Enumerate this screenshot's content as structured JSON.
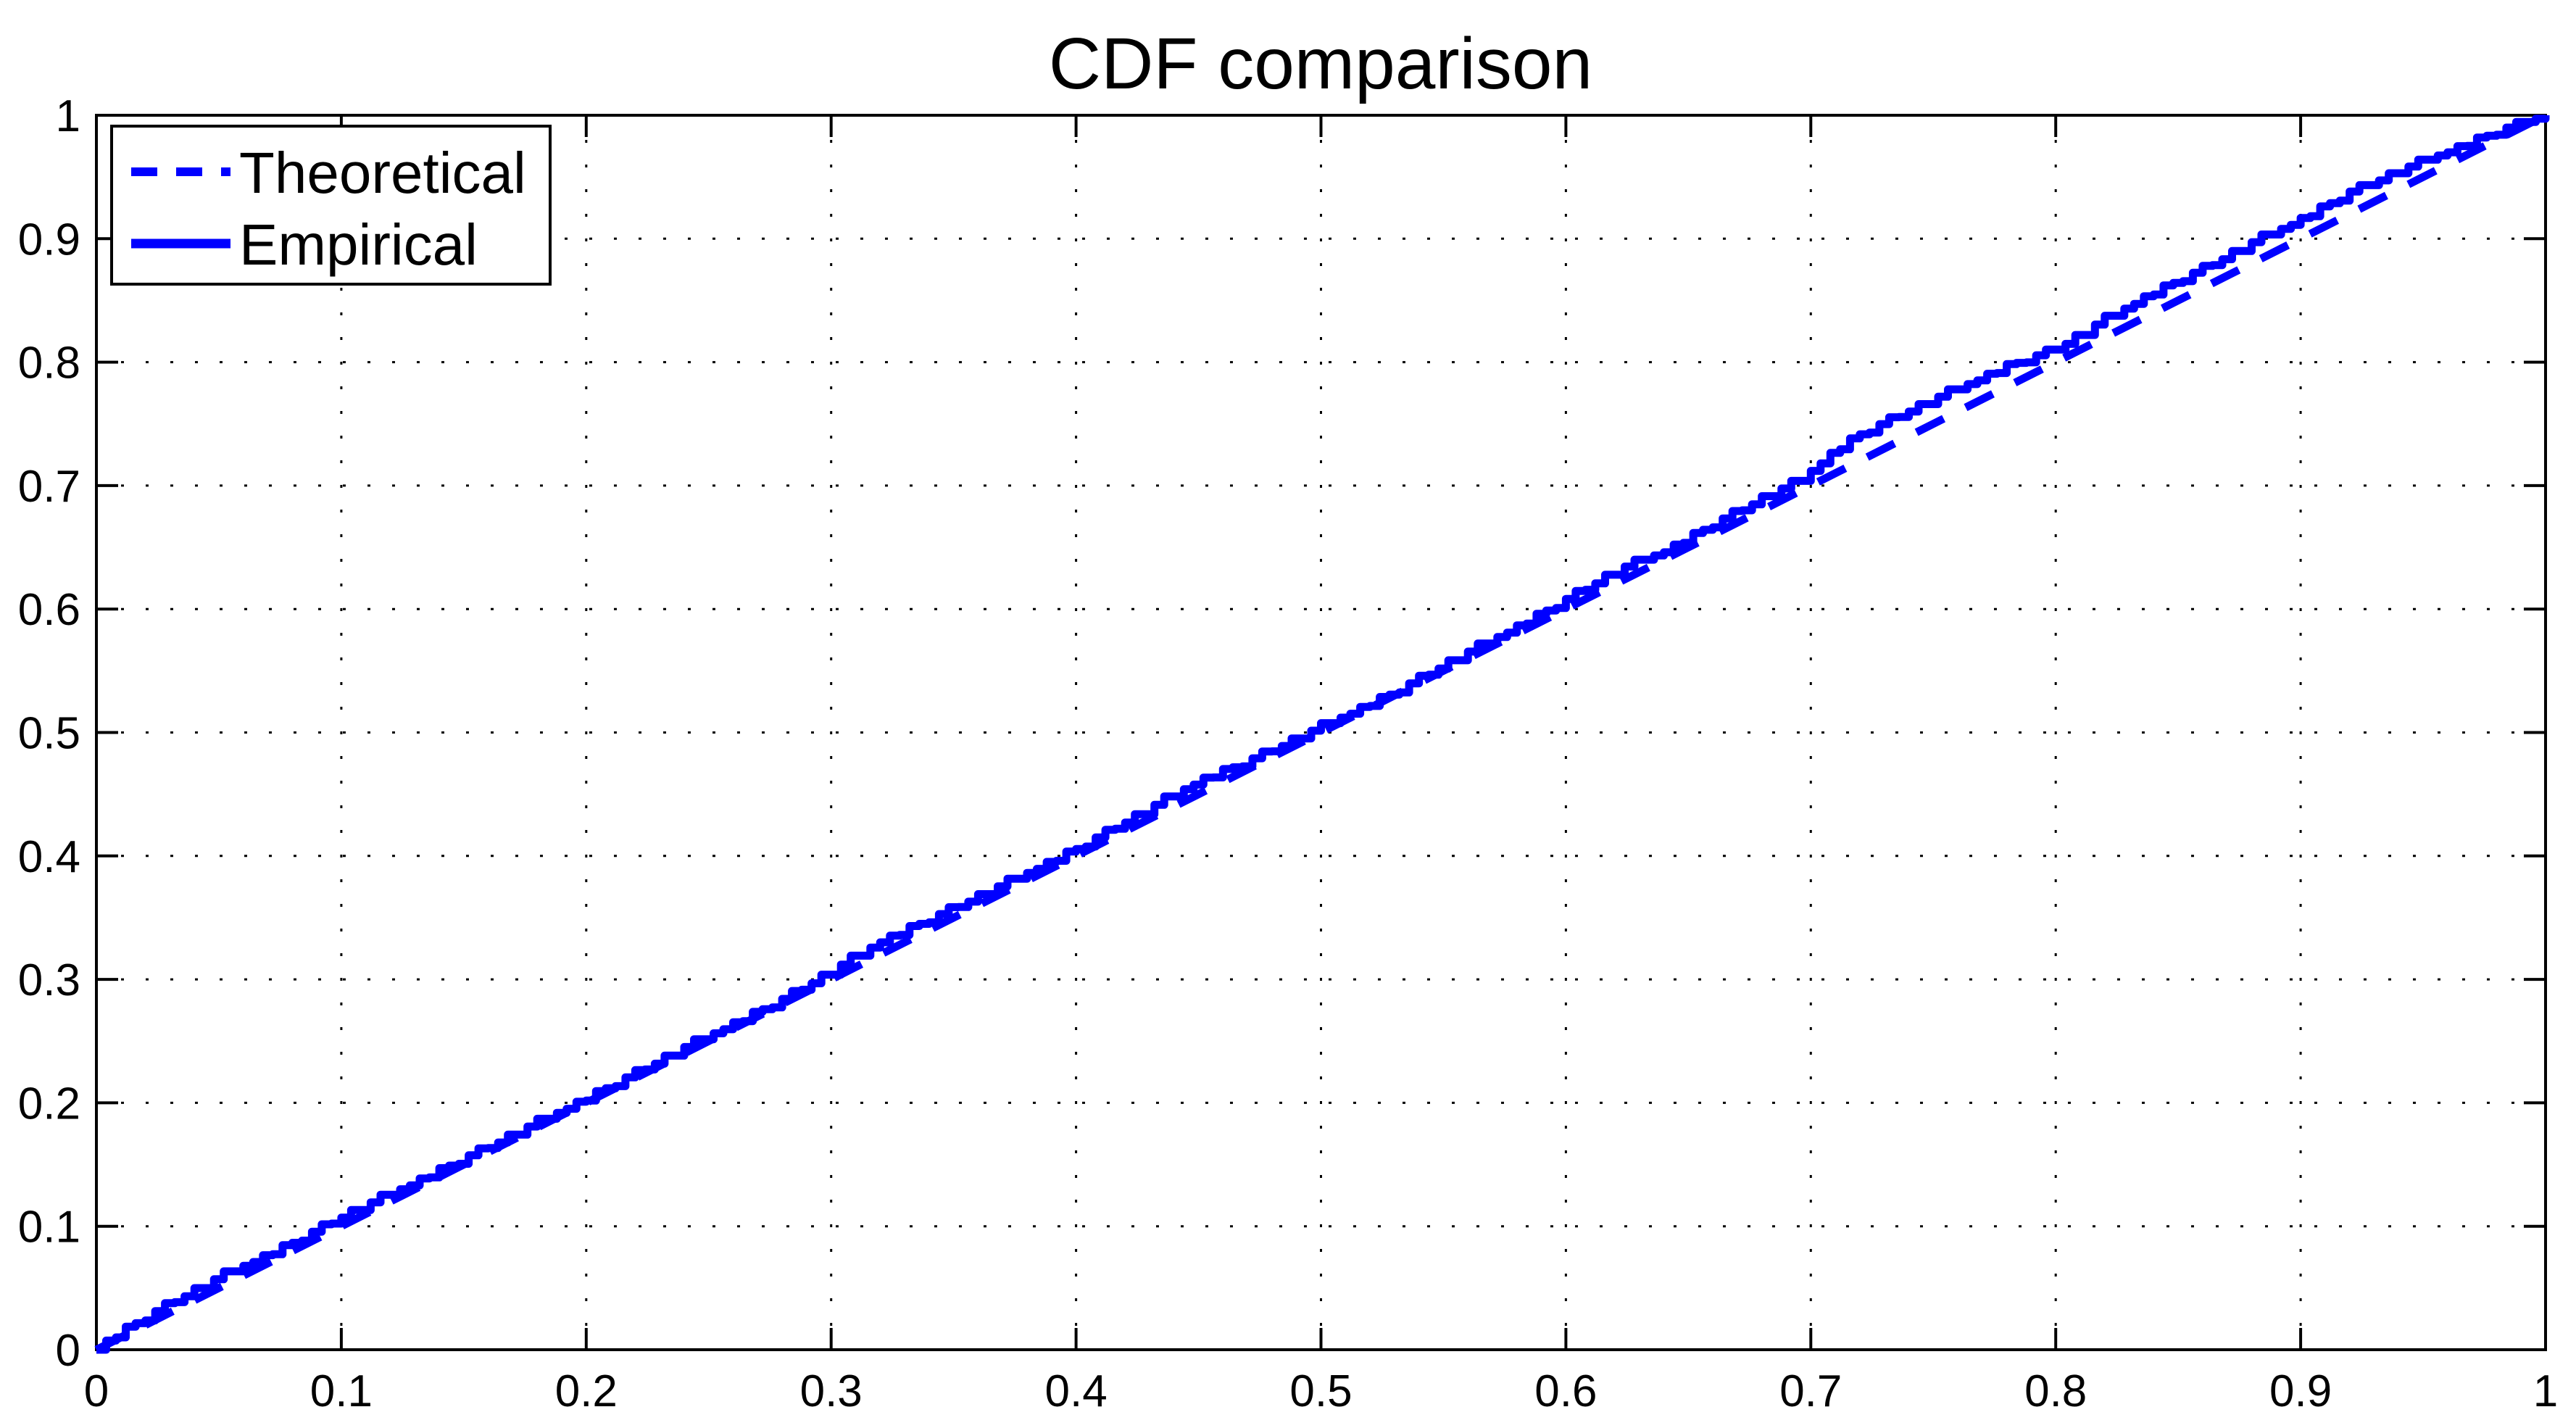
{
  "figure": {
    "background": "#ffffff",
    "axis_color": "#000000",
    "line_color": "#0000ff",
    "grid_style": "dotted"
  },
  "chart_data": {
    "type": "line",
    "title": "CDF comparison",
    "xlabel": "",
    "ylabel": "",
    "xlim": [
      0,
      1
    ],
    "ylim": [
      0,
      1
    ],
    "grid": "on-dotted-black",
    "legend_position": "top-left",
    "x_ticks": [
      0,
      0.1,
      0.2,
      0.3,
      0.4,
      0.5,
      0.6,
      0.7,
      0.8,
      0.9,
      1
    ],
    "y_ticks": [
      0,
      0.1,
      0.2,
      0.3,
      0.4,
      0.5,
      0.6,
      0.7,
      0.8,
      0.9,
      1
    ],
    "x_tick_labels": [
      "0",
      "0.1",
      "0.2",
      "0.3",
      "0.4",
      "0.5",
      "0.6",
      "0.7",
      "0.8",
      "0.9",
      "1"
    ],
    "y_tick_labels": [
      "0",
      "0.1",
      "0.2",
      "0.3",
      "0.4",
      "0.5",
      "0.6",
      "0.7",
      "0.8",
      "0.9",
      "1"
    ],
    "series": [
      {
        "name": "Theoretical",
        "style": "dashed",
        "color": "#0000ff",
        "points": [
          [
            0,
            0
          ],
          [
            1,
            1
          ]
        ]
      },
      {
        "name": "Empirical",
        "style": "solid-stairs",
        "color": "#0000ff",
        "points": [
          [
            0,
            0
          ],
          [
            0.01,
            0.014
          ],
          [
            0.03,
            0.037
          ],
          [
            0.05,
            0.058
          ],
          [
            0.08,
            0.086
          ],
          [
            0.1,
            0.107
          ],
          [
            0.13,
            0.135
          ],
          [
            0.16,
            0.164
          ],
          [
            0.2,
            0.203
          ],
          [
            0.24,
            0.244
          ],
          [
            0.28,
            0.283
          ],
          [
            0.3,
            0.306
          ],
          [
            0.32,
            0.33
          ],
          [
            0.34,
            0.348
          ],
          [
            0.37,
            0.376
          ],
          [
            0.4,
            0.405
          ],
          [
            0.43,
            0.438
          ],
          [
            0.45,
            0.46
          ],
          [
            0.47,
            0.476
          ],
          [
            0.5,
            0.504
          ],
          [
            0.53,
            0.532
          ],
          [
            0.55,
            0.554
          ],
          [
            0.58,
            0.585
          ],
          [
            0.6,
            0.607
          ],
          [
            0.62,
            0.63
          ],
          [
            0.64,
            0.646
          ],
          [
            0.66,
            0.668
          ],
          [
            0.68,
            0.689
          ],
          [
            0.695,
            0.703
          ],
          [
            0.71,
            0.728
          ],
          [
            0.72,
            0.741
          ],
          [
            0.74,
            0.76
          ],
          [
            0.76,
            0.778
          ],
          [
            0.78,
            0.796
          ],
          [
            0.8,
            0.81
          ],
          [
            0.82,
            0.834
          ],
          [
            0.84,
            0.856
          ],
          [
            0.86,
            0.875
          ],
          [
            0.88,
            0.896
          ],
          [
            0.9,
            0.915
          ],
          [
            0.92,
            0.937
          ],
          [
            0.94,
            0.954
          ],
          [
            0.96,
            0.97
          ],
          [
            0.98,
            0.986
          ],
          [
            1,
            1
          ]
        ]
      }
    ],
    "render_hints": {
      "densify_step": 0.004,
      "jitter_cycle": [
        0,
        1.5,
        -1,
        2,
        0.5,
        -1.5,
        1,
        2.5,
        -0.5,
        0,
        2,
        -2,
        1,
        3,
        -1,
        0.5
      ],
      "jitter_scale": 0.0012
    }
  },
  "legend": {
    "items": [
      {
        "label": "Theoretical"
      },
      {
        "label": "Empirical"
      }
    ]
  }
}
